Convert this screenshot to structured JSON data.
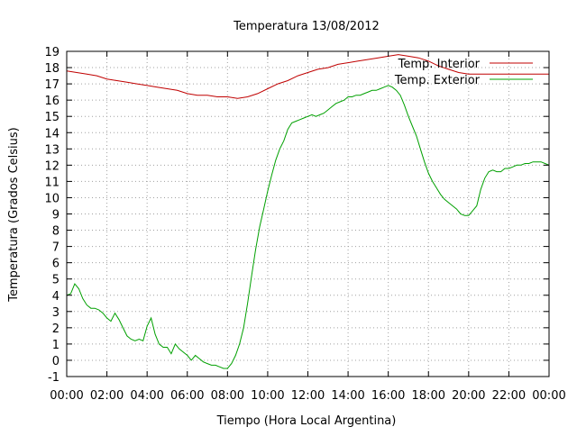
{
  "chart_data": {
    "type": "line",
    "title": "Temperatura 13/08/2012",
    "xlabel": "Tiempo (Hora Local Argentina)",
    "ylabel": "Temperatura (Grados Celsius)",
    "xlim": [
      0,
      24
    ],
    "ylim": [
      -1,
      19
    ],
    "x_tick_labels": [
      "00:00",
      "02:00",
      "04:00",
      "06:00",
      "08:00",
      "10:00",
      "12:00",
      "14:00",
      "16:00",
      "18:00",
      "20:00",
      "22:00",
      "00:00"
    ],
    "y_ticks": [
      -1,
      0,
      1,
      2,
      3,
      4,
      5,
      6,
      7,
      8,
      9,
      10,
      11,
      12,
      13,
      14,
      15,
      16,
      17,
      18,
      19
    ],
    "grid": true,
    "legend_position": "top-right",
    "series": [
      {
        "name": "Temp. Interior",
        "color": "#c00000",
        "x": [
          0,
          0.5,
          1,
          1.5,
          2,
          2.5,
          3,
          3.5,
          4,
          4.5,
          5,
          5.5,
          6,
          6.5,
          7,
          7.5,
          8,
          8.5,
          9,
          9.5,
          10,
          10.5,
          11,
          11.5,
          12,
          12.5,
          13,
          13.5,
          14,
          14.5,
          15,
          15.5,
          16,
          16.5,
          17,
          17.5,
          18,
          18.5,
          19,
          19.5,
          20,
          20.5,
          21,
          21.5,
          22,
          22.5,
          23,
          23.5,
          24
        ],
        "y": [
          17.8,
          17.7,
          17.6,
          17.5,
          17.3,
          17.2,
          17.1,
          17.0,
          16.9,
          16.8,
          16.7,
          16.6,
          16.4,
          16.3,
          16.3,
          16.2,
          16.2,
          16.1,
          16.2,
          16.4,
          16.7,
          17.0,
          17.2,
          17.5,
          17.7,
          17.9,
          18.0,
          18.2,
          18.3,
          18.4,
          18.5,
          18.6,
          18.7,
          18.8,
          18.7,
          18.6,
          18.4,
          18.1,
          17.9,
          17.7,
          17.6,
          17.6,
          17.6,
          17.6,
          17.6,
          17.6,
          17.6,
          17.6,
          17.6
        ]
      },
      {
        "name": "Temp. Exterior",
        "color": "#00a000",
        "x": [
          0,
          0.2,
          0.4,
          0.6,
          0.8,
          1,
          1.2,
          1.4,
          1.6,
          1.8,
          2,
          2.2,
          2.4,
          2.6,
          2.8,
          3,
          3.2,
          3.4,
          3.6,
          3.8,
          4,
          4.2,
          4.4,
          4.6,
          4.8,
          5,
          5.2,
          5.4,
          5.6,
          5.8,
          6,
          6.2,
          6.4,
          6.6,
          6.8,
          7,
          7.2,
          7.4,
          7.6,
          7.8,
          8,
          8.2,
          8.4,
          8.6,
          8.8,
          9,
          9.2,
          9.4,
          9.6,
          9.8,
          10,
          10.2,
          10.4,
          10.6,
          10.8,
          11,
          11.2,
          11.4,
          11.6,
          11.8,
          12,
          12.2,
          12.4,
          12.6,
          12.8,
          13,
          13.2,
          13.4,
          13.6,
          13.8,
          14,
          14.2,
          14.4,
          14.6,
          14.8,
          15,
          15.2,
          15.4,
          15.6,
          15.8,
          16,
          16.2,
          16.4,
          16.6,
          16.8,
          17,
          17.2,
          17.4,
          17.6,
          17.8,
          18,
          18.2,
          18.4,
          18.6,
          18.8,
          19,
          19.2,
          19.4,
          19.6,
          19.8,
          20,
          20.2,
          20.4,
          20.6,
          20.8,
          21,
          21.2,
          21.4,
          21.6,
          21.8,
          22,
          22.2,
          22.4,
          22.6,
          22.8,
          23,
          23.2,
          23.4,
          23.6,
          23.8,
          24
        ],
        "y": [
          4.0,
          4.1,
          4.7,
          4.4,
          3.8,
          3.4,
          3.2,
          3.2,
          3.1,
          2.9,
          2.6,
          2.4,
          2.9,
          2.5,
          2.0,
          1.5,
          1.3,
          1.2,
          1.3,
          1.2,
          2.1,
          2.6,
          1.6,
          1.0,
          0.8,
          0.8,
          0.4,
          1.0,
          0.7,
          0.5,
          0.3,
          0.0,
          0.3,
          0.1,
          -0.1,
          -0.2,
          -0.3,
          -0.3,
          -0.4,
          -0.5,
          -0.5,
          -0.2,
          0.3,
          1.0,
          2.0,
          3.5,
          5.2,
          6.8,
          8.2,
          9.3,
          10.4,
          11.4,
          12.3,
          13.0,
          13.5,
          14.2,
          14.6,
          14.7,
          14.8,
          14.9,
          15.0,
          15.1,
          15.0,
          15.1,
          15.2,
          15.4,
          15.6,
          15.8,
          15.9,
          16.0,
          16.2,
          16.2,
          16.3,
          16.3,
          16.4,
          16.5,
          16.6,
          16.6,
          16.7,
          16.8,
          16.9,
          16.8,
          16.6,
          16.3,
          15.7,
          15.0,
          14.4,
          13.8,
          13.0,
          12.2,
          11.5,
          11.0,
          10.6,
          10.2,
          9.9,
          9.7,
          9.5,
          9.3,
          9.0,
          8.9,
          8.9,
          9.2,
          9.5,
          10.5,
          11.2,
          11.6,
          11.7,
          11.6,
          11.6,
          11.8,
          11.8,
          11.9,
          12.0,
          12.0,
          12.1,
          12.1,
          12.2,
          12.2,
          12.2,
          12.1,
          12.0
        ]
      }
    ]
  }
}
